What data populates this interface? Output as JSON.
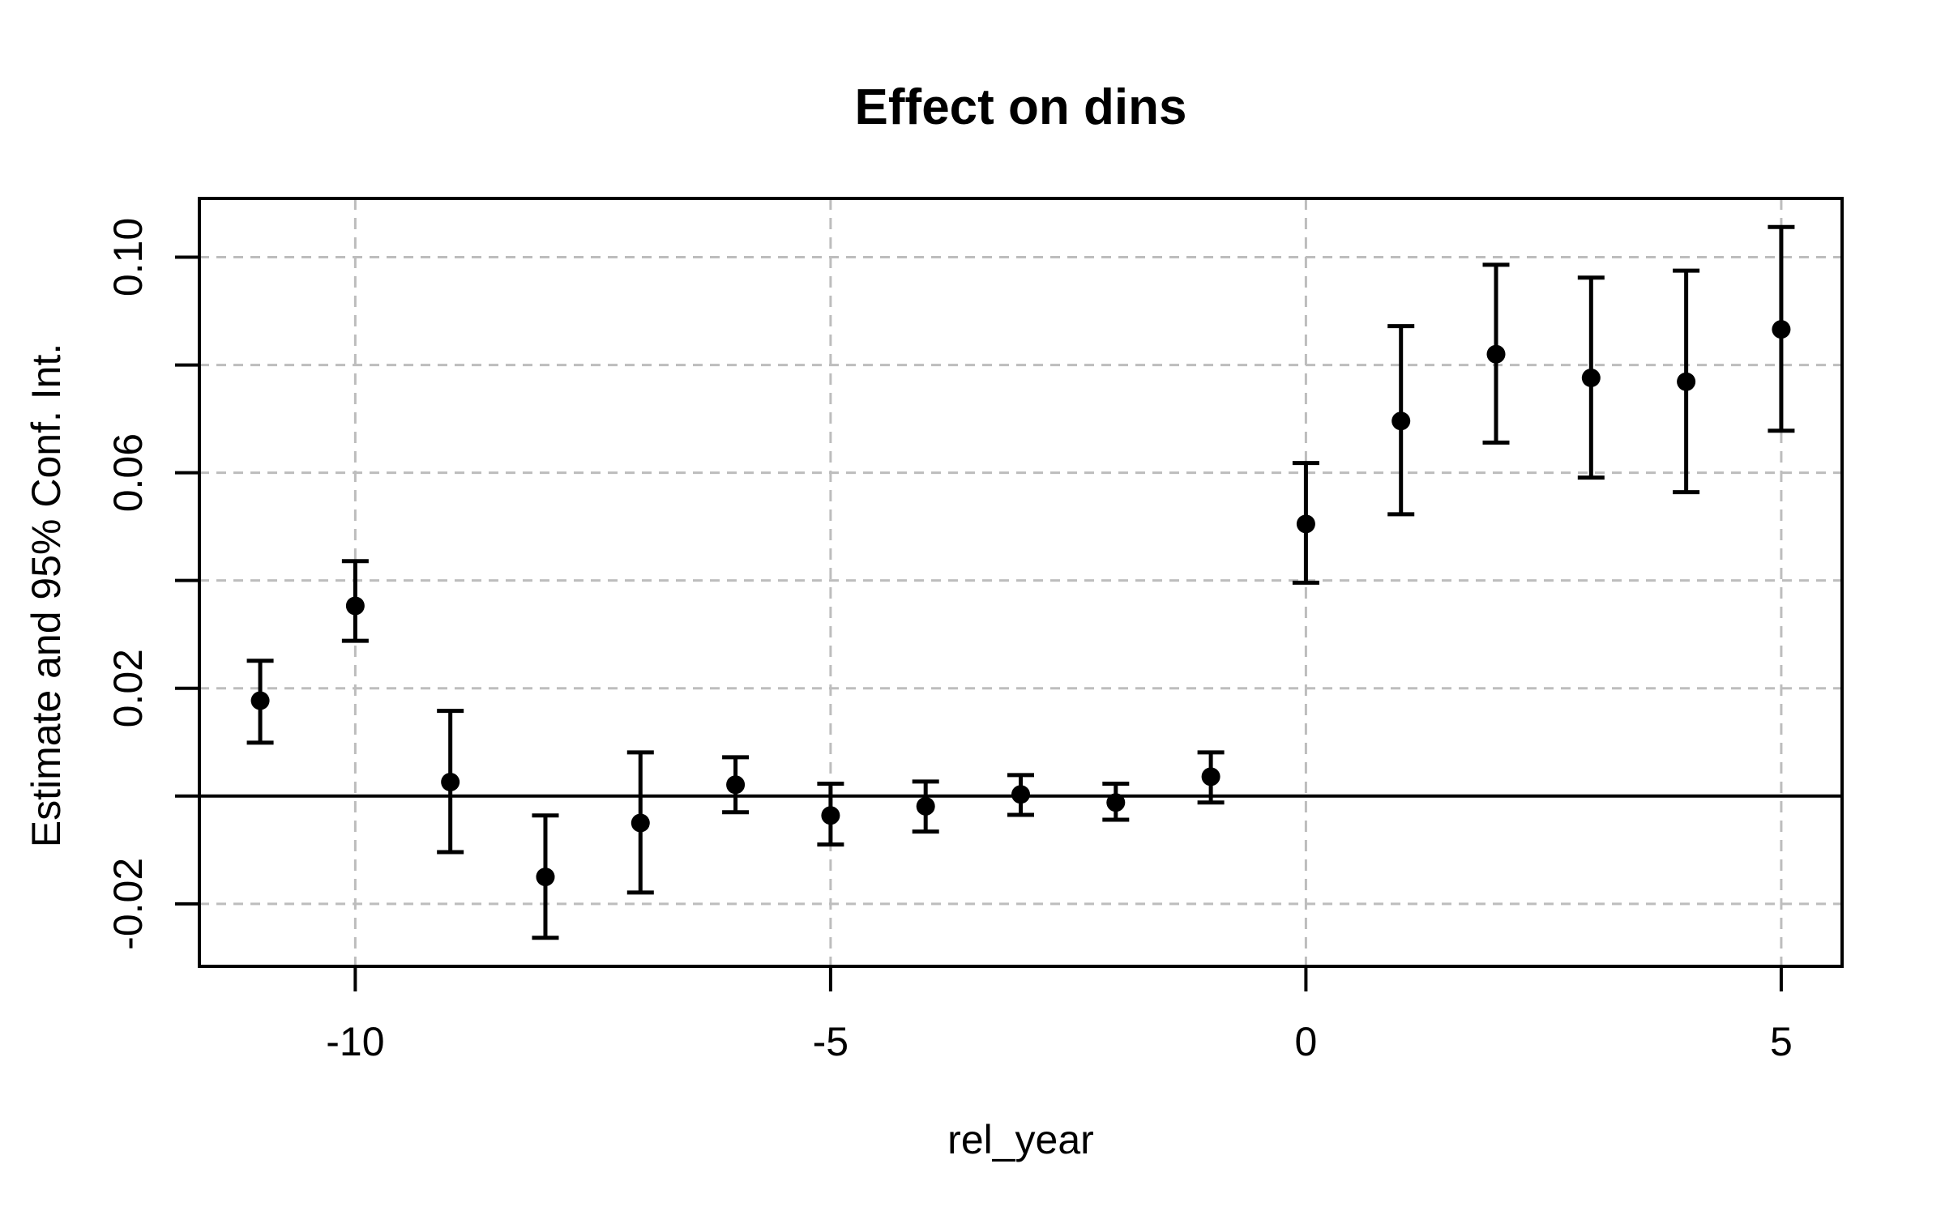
{
  "title": "Effect on dins",
  "chart_data": {
    "type": "scatter",
    "subtype": "point-estimates-with-95pct-confidence-intervals",
    "title": "Effect on dins",
    "xlabel": "rel_year",
    "ylabel": "Estimate and 95% Conf. Int.",
    "xlim": [
      -11.64,
      5.64
    ],
    "ylim": [
      -0.0316,
      0.1109
    ],
    "x_ticks": [
      {
        "value": -10,
        "label": "-10"
      },
      {
        "value": -5,
        "label": "-5"
      },
      {
        "value": 0,
        "label": "0"
      },
      {
        "value": 5,
        "label": "5"
      }
    ],
    "y_ticks": [
      {
        "value": -0.02,
        "label": "-0.02"
      },
      {
        "value": 0.0,
        "label": ""
      },
      {
        "value": 0.02,
        "label": "0.02"
      },
      {
        "value": 0.04,
        "label": ""
      },
      {
        "value": 0.06,
        "label": "0.06"
      },
      {
        "value": 0.08,
        "label": ""
      },
      {
        "value": 0.1,
        "label": "0.10"
      }
    ],
    "grid": {
      "horizontal_at": [
        -0.02,
        0.0,
        0.02,
        0.04,
        0.06,
        0.08,
        0.1
      ],
      "vertical_at": [
        -10,
        -5,
        0,
        5
      ],
      "style": "dashed",
      "color": "#bdbdbd"
    },
    "reference_line_y": 0,
    "legend": "none",
    "colors": {
      "foreground": "#000000",
      "background": "#ffffff",
      "grid": "#bdbdbd"
    },
    "series": [
      {
        "name": "estimate",
        "points": [
          {
            "x": -11,
            "estimate": 0.0177,
            "ci_low": 0.0099,
            "ci_high": 0.0251
          },
          {
            "x": -10,
            "estimate": 0.0353,
            "ci_low": 0.0288,
            "ci_high": 0.0436
          },
          {
            "x": -9,
            "estimate": 0.0026,
            "ci_low": -0.0104,
            "ci_high": 0.0158
          },
          {
            "x": -8,
            "estimate": -0.015,
            "ci_low": -0.0263,
            "ci_high": -0.0036
          },
          {
            "x": -7,
            "estimate": -0.005,
            "ci_low": -0.0179,
            "ci_high": 0.0081
          },
          {
            "x": -6,
            "estimate": 0.0021,
            "ci_low": -0.003,
            "ci_high": 0.0072
          },
          {
            "x": -5,
            "estimate": -0.0036,
            "ci_low": -0.009,
            "ci_high": 0.0023
          },
          {
            "x": -4,
            "estimate": -0.0019,
            "ci_low": -0.0066,
            "ci_high": 0.0027
          },
          {
            "x": -3,
            "estimate": 0.0003,
            "ci_low": -0.0035,
            "ci_high": 0.0039
          },
          {
            "x": -2,
            "estimate": -0.0012,
            "ci_low": -0.0044,
            "ci_high": 0.0023
          },
          {
            "x": -1,
            "estimate": 0.0036,
            "ci_low": -0.0012,
            "ci_high": 0.0081
          },
          {
            "x": 0,
            "estimate": 0.0505,
            "ci_low": 0.0396,
            "ci_high": 0.0618
          },
          {
            "x": 1,
            "estimate": 0.0696,
            "ci_low": 0.0523,
            "ci_high": 0.0872
          },
          {
            "x": 2,
            "estimate": 0.082,
            "ci_low": 0.0656,
            "ci_high": 0.0986
          },
          {
            "x": 3,
            "estimate": 0.0776,
            "ci_low": 0.0591,
            "ci_high": 0.0962
          },
          {
            "x": 4,
            "estimate": 0.0769,
            "ci_low": 0.0564,
            "ci_high": 0.0975
          },
          {
            "x": 5,
            "estimate": 0.0866,
            "ci_low": 0.0678,
            "ci_high": 0.1056
          }
        ]
      }
    ]
  }
}
